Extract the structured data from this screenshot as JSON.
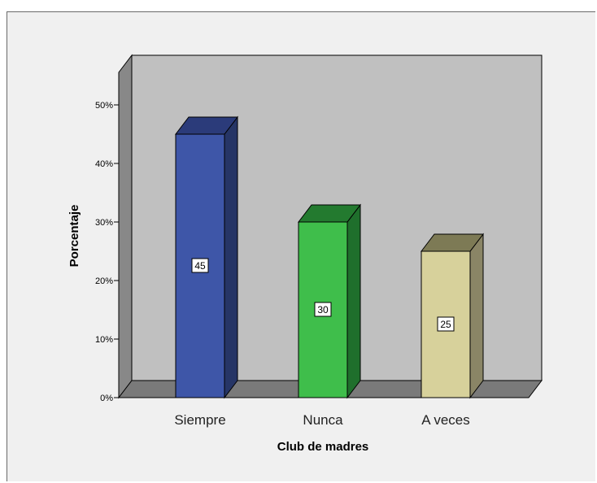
{
  "chart_data": {
    "type": "bar",
    "style": "3d",
    "categories": [
      "Siempre",
      "Nunca",
      "A veces"
    ],
    "values": [
      45,
      30,
      25
    ],
    "data_labels": [
      "45",
      "30",
      "25"
    ],
    "bar_colors": [
      {
        "front": "#3e56a8",
        "side": "#263566",
        "top": "#2b3b7a"
      },
      {
        "front": "#3fbe4b",
        "side": "#1f6f2c",
        "top": "#237a2f"
      },
      {
        "front": "#d7d19b",
        "side": "#8a8566",
        "top": "#7d7a55"
      }
    ],
    "xlabel": "Club de madres",
    "ylabel": "Porcentaje",
    "ylim": [
      0,
      55
    ],
    "yticks": [
      0,
      10,
      20,
      30,
      40,
      50
    ],
    "ytick_labels": [
      "0%",
      "10%",
      "20%",
      "30%",
      "40%",
      "50%"
    ],
    "grid": false,
    "legend": "none",
    "colors": {
      "plot_back": "#c0c0c0",
      "plot_floor": "#7a7a7a",
      "plot_wall_side": "#888888",
      "background": "#f0f0f0"
    }
  }
}
